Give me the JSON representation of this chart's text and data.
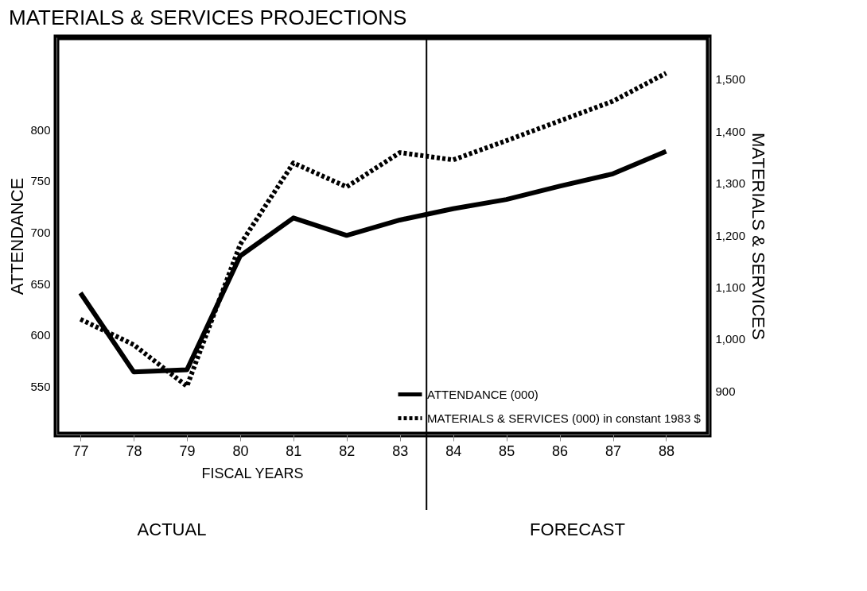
{
  "chart_data": {
    "type": "line",
    "title": "MATERIALS & SERVICES PROJECTIONS",
    "xlabel": "FISCAL YEARS",
    "ylabel": "ATTENDANCE",
    "y2label": "MATERIALS & SERVICES",
    "x": [
      77,
      78,
      79,
      80,
      81,
      82,
      83,
      84,
      85,
      86,
      87,
      88
    ],
    "series": [
      {
        "name": "ATTENDANCE (000)",
        "color": "#000000",
        "line_style": "solid",
        "values": [
          641,
          564,
          566,
          677,
          714,
          697,
          712,
          723,
          732,
          745,
          757,
          779
        ]
      },
      {
        "name": "MATERIALS & SERVICES (000) in constant 1983 $",
        "color": "#000000",
        "line_style": "dotted",
        "axis": "y2",
        "values": [
          1038,
          989,
          909,
          1182,
          1339,
          1293,
          1359,
          1345,
          1382,
          1420,
          1458,
          1512
        ]
      }
    ],
    "xlim": [
      76.55,
      88.8
    ],
    "xticks": [
      77,
      78,
      79,
      80,
      81,
      82,
      83,
      84,
      85,
      86,
      87,
      88
    ],
    "ylim": [
      503,
      890
    ],
    "yticks": [
      550,
      600,
      650,
      700,
      750,
      800
    ],
    "y2lim": [
      816,
      1581
    ],
    "y2ticks": [
      900,
      {
        "value": 1000,
        "label": "1,000"
      },
      {
        "value": 1100,
        "label": "1,100"
      },
      {
        "value": 1200,
        "label": "1,200"
      },
      {
        "value": 1300,
        "label": "1,300"
      },
      {
        "value": 1400,
        "label": "1,400"
      },
      {
        "value": 1500,
        "label": "1,500"
      }
    ],
    "ref_lines": [
      {
        "axis": "x",
        "value": 83.5,
        "color": "#000000",
        "line_style": "solid"
      }
    ],
    "annotations": [
      "ACTUAL",
      "FORECAST"
    ],
    "grid": false,
    "legend": "bottom right"
  }
}
